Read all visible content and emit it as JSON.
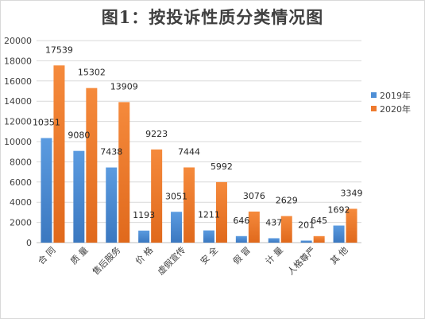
{
  "chart_data": {
    "type": "bar",
    "title": "图1：按投诉性质分类情况图",
    "xlabel": "",
    "ylabel": "",
    "categories": [
      "合 同",
      "质 量",
      "售后服务",
      "价 格",
      "虚假宣传",
      "安 全",
      "假 冒",
      "计 量",
      "人格尊严",
      "其 他"
    ],
    "series": [
      {
        "name": "2019年",
        "color": "#4f8fd6",
        "values": [
          10351,
          9080,
          7438,
          1193,
          3051,
          1211,
          646,
          437,
          201,
          1692
        ]
      },
      {
        "name": "2020年",
        "color": "#ee7a2e",
        "values": [
          17539,
          15302,
          13909,
          9223,
          7444,
          5992,
          3076,
          2629,
          645,
          3349
        ]
      }
    ],
    "ylim": [
      0,
      20000
    ],
    "yticks": [
      0,
      2000,
      4000,
      6000,
      8000,
      10000,
      12000,
      14000,
      16000,
      18000,
      20000
    ],
    "grid": true,
    "legend_position": "right"
  }
}
